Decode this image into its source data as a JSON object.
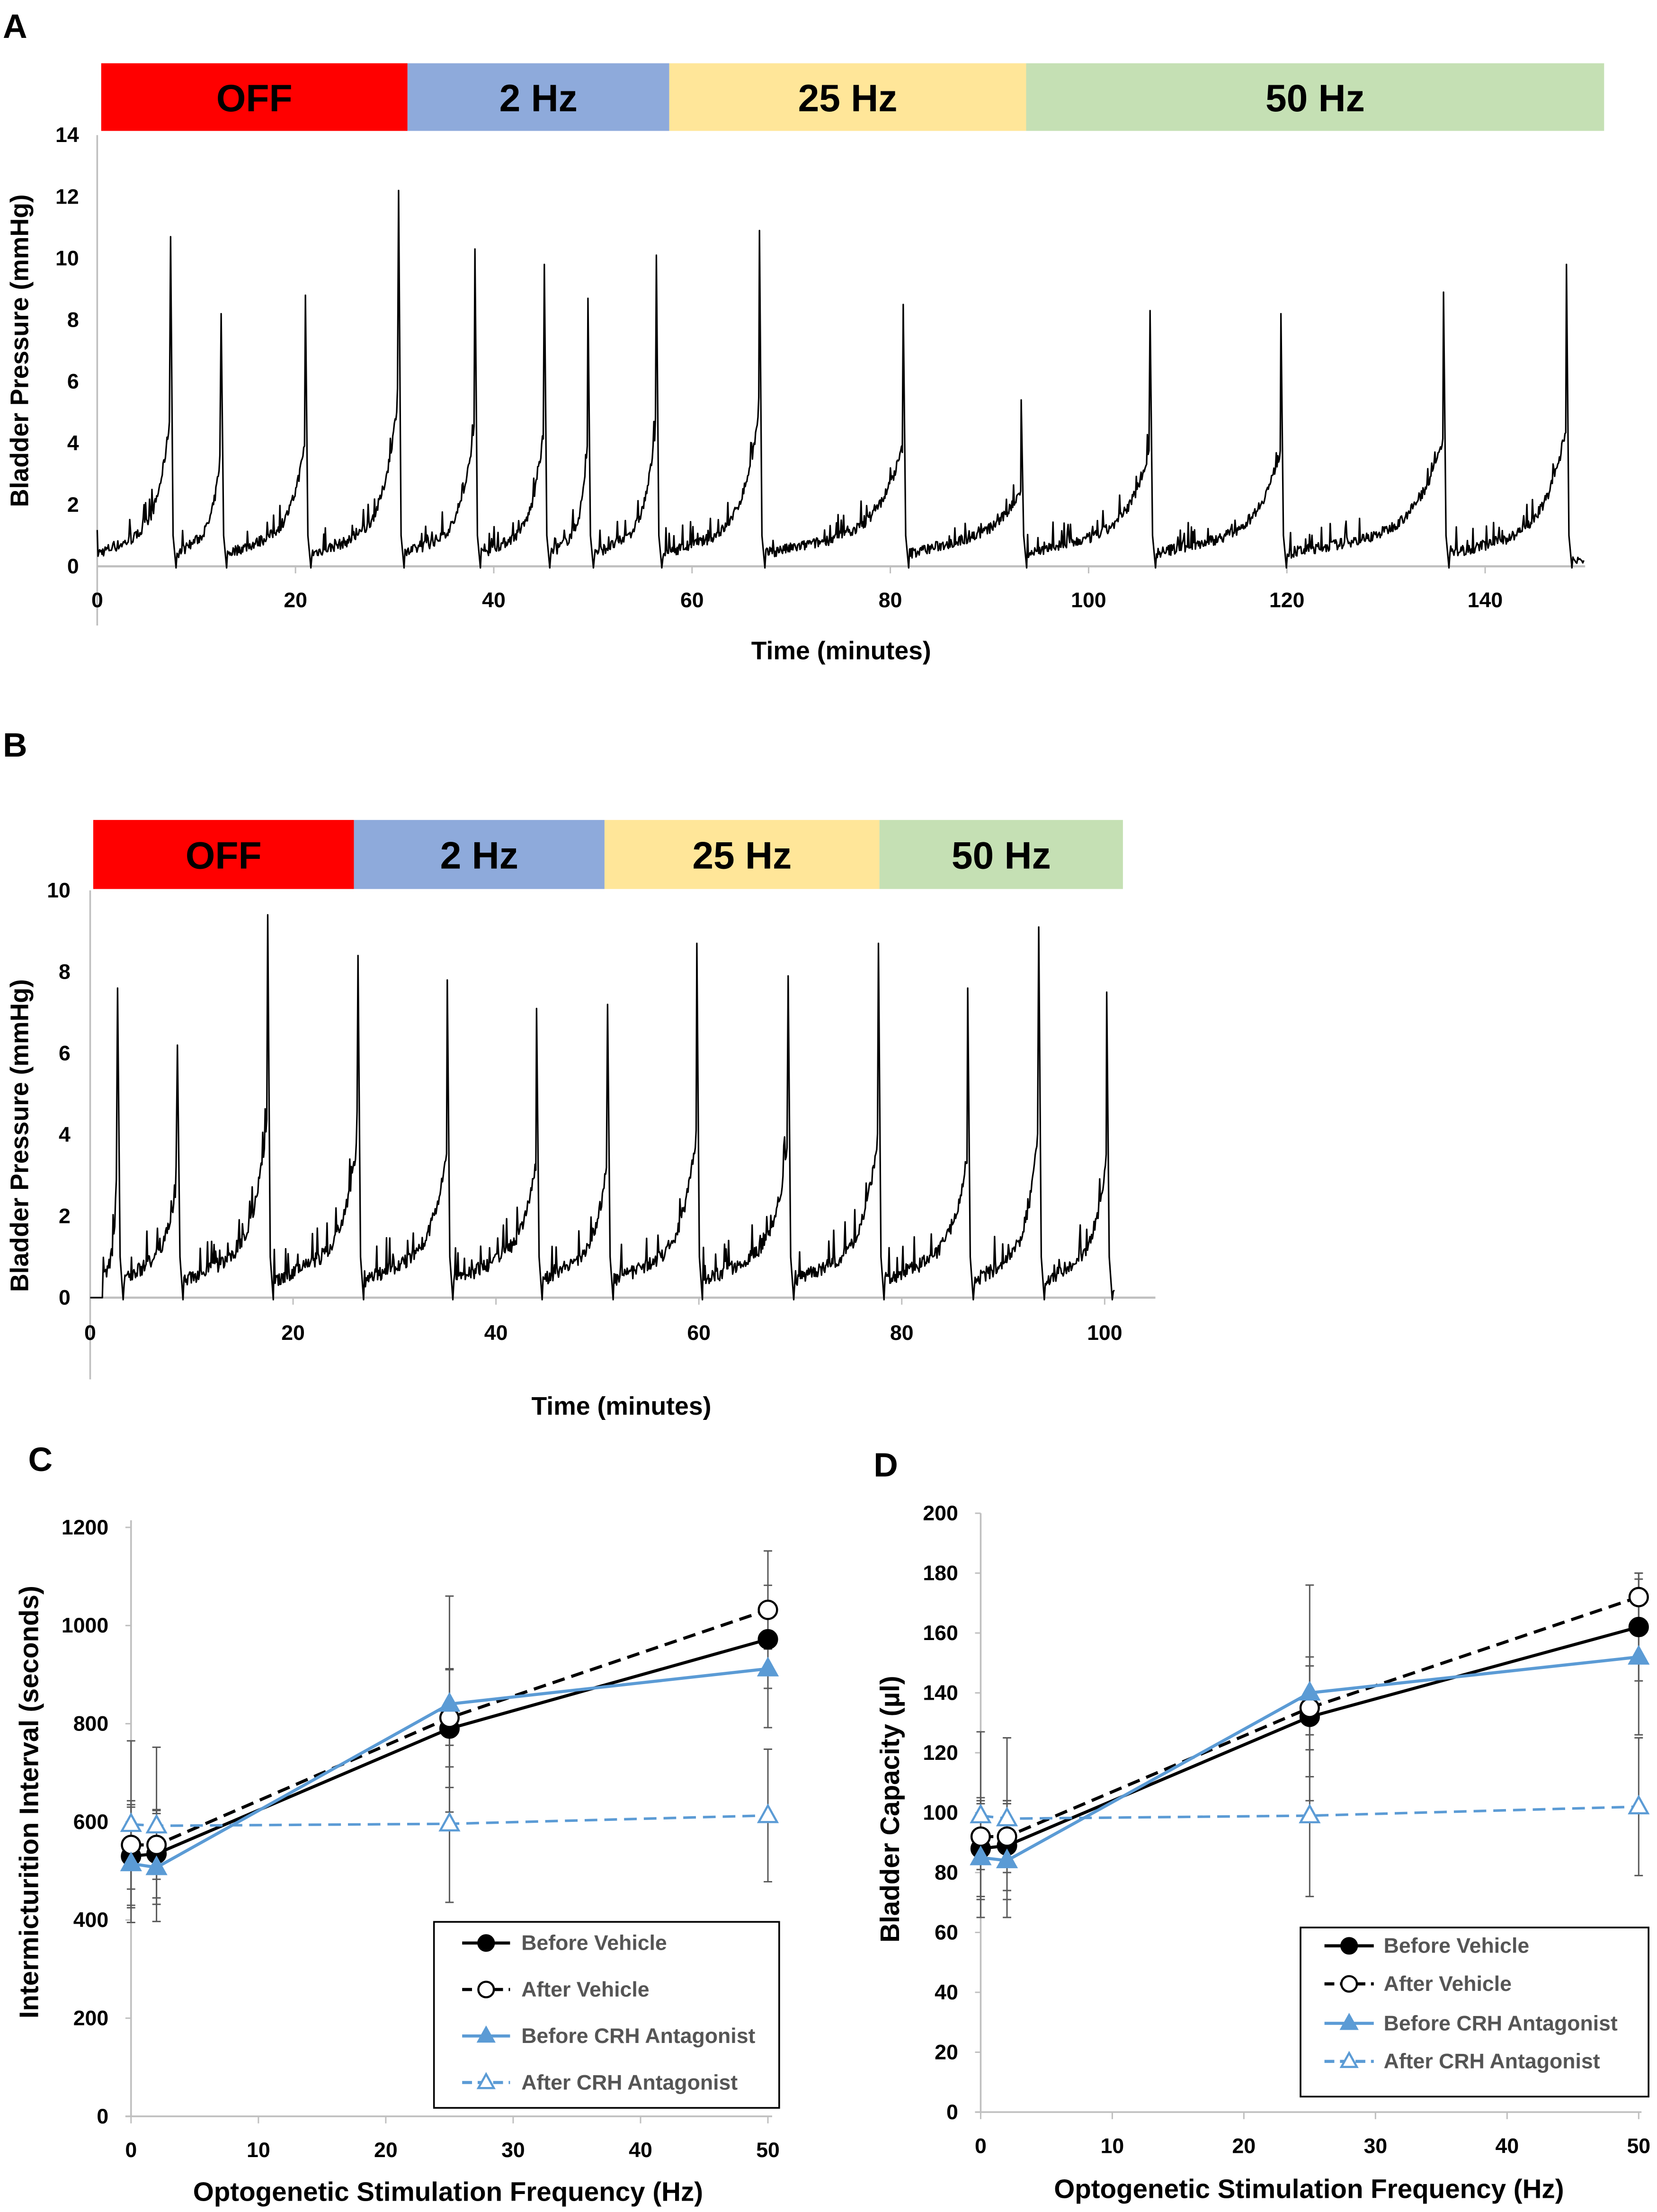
{
  "panels": {
    "A": {
      "letter": "A",
      "xlabel": "Time (minutes)",
      "ylabel": "Bladder Pressure (mmHg)"
    },
    "B": {
      "letter": "B",
      "xlabel": "Time (minutes)",
      "ylabel": "Bladder Pressure (mmHg)"
    },
    "C": {
      "letter": "C",
      "xlabel": "Optogenetic Stimulation Frequency (Hz)",
      "ylabel": "Intermicturition Interval (seconds)"
    },
    "D": {
      "letter": "D",
      "xlabel": "Optogenetic Stimulation Frequency (Hz)",
      "ylabel": "Bladder Capacity (µl)"
    }
  },
  "chart_data": [
    {
      "panel": "A",
      "type": "line",
      "xlabel": "Time (minutes)",
      "ylabel": "Bladder Pressure (mmHg)",
      "xlim": [
        0,
        150
      ],
      "ylim": [
        0,
        14
      ],
      "grid": false,
      "xticks": [
        0,
        20,
        40,
        60,
        80,
        100,
        120,
        140
      ],
      "yticks": [
        0,
        2,
        4,
        6,
        8,
        10,
        12,
        14
      ],
      "epochs": [
        {
          "label": "OFF",
          "start": 0.4,
          "end": 31.3,
          "color": "#ff0000"
        },
        {
          "label": "2 Hz",
          "start": 31.3,
          "end": 57.7,
          "color": "#8eaadb"
        },
        {
          "label": "25 Hz",
          "start": 57.7,
          "end": 93.7,
          "color": "#ffe699"
        },
        {
          "label": "50 Hz",
          "start": 93.7,
          "end": 152,
          "color": "#c5e0b4"
        }
      ],
      "peaks": [
        {
          "t": 7.4,
          "p": 10.7
        },
        {
          "t": 12.5,
          "p": 8.2
        },
        {
          "t": 21.0,
          "p": 8.8
        },
        {
          "t": 30.4,
          "p": 12.2
        },
        {
          "t": 38.1,
          "p": 10.3
        },
        {
          "t": 45.1,
          "p": 9.8
        },
        {
          "t": 49.5,
          "p": 8.7
        },
        {
          "t": 56.4,
          "p": 10.1
        },
        {
          "t": 66.8,
          "p": 10.9
        },
        {
          "t": 81.3,
          "p": 8.5
        },
        {
          "t": 93.2,
          "p": 5.4
        },
        {
          "t": 106.2,
          "p": 8.3
        },
        {
          "t": 119.4,
          "p": 8.2
        },
        {
          "t": 135.8,
          "p": 8.9
        },
        {
          "t": 148.2,
          "p": 9.8
        }
      ],
      "end": 150
    },
    {
      "panel": "B",
      "type": "line",
      "xlabel": "Time (minutes)",
      "ylabel": "Bladder Pressure (mmHg)",
      "xlim": [
        0,
        105
      ],
      "ylim": [
        0,
        10
      ],
      "grid": false,
      "xticks": [
        0,
        20,
        40,
        60,
        80,
        100
      ],
      "yticks": [
        0,
        2,
        4,
        6,
        8,
        10
      ],
      "epochs": [
        {
          "label": "OFF",
          "start": 0.3,
          "end": 26.0,
          "color": "#ff0000"
        },
        {
          "label": "2 Hz",
          "start": 26.0,
          "end": 50.7,
          "color": "#8eaadb"
        },
        {
          "label": "25 Hz",
          "start": 50.7,
          "end": 77.8,
          "color": "#ffe699"
        },
        {
          "label": "50 Hz",
          "start": 77.8,
          "end": 101.8,
          "color": "#c5e0b4"
        }
      ],
      "peaks": [
        {
          "t": 2.7,
          "p": 7.6
        },
        {
          "t": 8.6,
          "p": 6.2
        },
        {
          "t": 17.5,
          "p": 9.4
        },
        {
          "t": 26.4,
          "p": 8.4
        },
        {
          "t": 35.2,
          "p": 7.8
        },
        {
          "t": 44.0,
          "p": 7.1
        },
        {
          "t": 51.0,
          "p": 7.2
        },
        {
          "t": 59.8,
          "p": 8.7
        },
        {
          "t": 68.8,
          "p": 7.9
        },
        {
          "t": 77.7,
          "p": 8.7
        },
        {
          "t": 86.5,
          "p": 7.6
        },
        {
          "t": 93.5,
          "p": 9.1
        },
        {
          "t": 100.2,
          "p": 7.5
        }
      ],
      "end": 101
    },
    {
      "panel": "C",
      "type": "line",
      "xlabel": "Optogenetic Stimulation Frequency (Hz)",
      "ylabel": "Intermicturition Interval (seconds)",
      "xlim": [
        0,
        50
      ],
      "ylim": [
        0,
        1200
      ],
      "grid": false,
      "legend": "bottom-right",
      "xticks": [
        0,
        10,
        20,
        30,
        40,
        50
      ],
      "yticks": [
        0,
        200,
        400,
        600,
        800,
        1000,
        1200
      ],
      "x": [
        0,
        2,
        25,
        50
      ],
      "series": [
        {
          "name": "Before Vehicle",
          "values": [
            530,
            535,
            790,
            972
          ],
          "errors": [
            100,
            90,
            120,
            180
          ],
          "color": "#000000",
          "dashed": false,
          "marker": "circle",
          "filled": true
        },
        {
          "name": "After Vehicle",
          "values": [
            553,
            553,
            812,
            1032
          ],
          "errors": [
            90,
            70,
            100,
            50
          ],
          "color": "#000000",
          "dashed": true,
          "marker": "circle",
          "filled": false
        },
        {
          "name": "Before CRH Antagonist",
          "values": [
            515,
            507,
            840,
            912
          ],
          "errors": [
            120,
            110,
            220,
            40
          ],
          "color": "#5b9bd5",
          "dashed": false,
          "marker": "triangle",
          "filled": true
        },
        {
          "name": "After CRH Antagonist",
          "values": [
            595,
            592,
            596,
            613
          ],
          "errors": [
            170,
            160,
            160,
            135
          ],
          "color": "#5b9bd5",
          "dashed": true,
          "marker": "triangle",
          "filled": false
        }
      ]
    },
    {
      "panel": "D",
      "type": "line",
      "xlabel": "Optogenetic Stimulation Frequency (Hz)",
      "ylabel": "Bladder Capacity (µl)",
      "xlim": [
        0,
        50
      ],
      "ylim": [
        0,
        200
      ],
      "grid": false,
      "legend": "bottom-right",
      "xticks": [
        0,
        10,
        20,
        30,
        40,
        50
      ],
      "yticks": [
        0,
        20,
        40,
        60,
        80,
        100,
        120,
        140,
        160,
        180,
        200
      ],
      "x": [
        0,
        2,
        25,
        50
      ],
      "series": [
        {
          "name": "Before Vehicle",
          "values": [
            88,
            89,
            132,
            162
          ],
          "errors": [
            16,
            15,
            20,
            18
          ],
          "color": "#000000",
          "dashed": false,
          "marker": "circle",
          "filled": true
        },
        {
          "name": "After Vehicle",
          "values": [
            92,
            92,
            135,
            172
          ],
          "errors": [
            11,
            12,
            14,
            8
          ],
          "color": "#000000",
          "dashed": true,
          "marker": "circle",
          "filled": false
        },
        {
          "name": "Before CRH Antagonist",
          "values": [
            85,
            84,
            140,
            152
          ],
          "errors": [
            20,
            19,
            36,
            26
          ],
          "color": "#5b9bd5",
          "dashed": false,
          "marker": "triangle",
          "filled": true
        },
        {
          "name": "After CRH Antagonist",
          "values": [
            99,
            98,
            99,
            102
          ],
          "errors": [
            28,
            27,
            27,
            23
          ],
          "color": "#5b9bd5",
          "dashed": true,
          "marker": "triangle",
          "filled": false
        }
      ]
    }
  ]
}
